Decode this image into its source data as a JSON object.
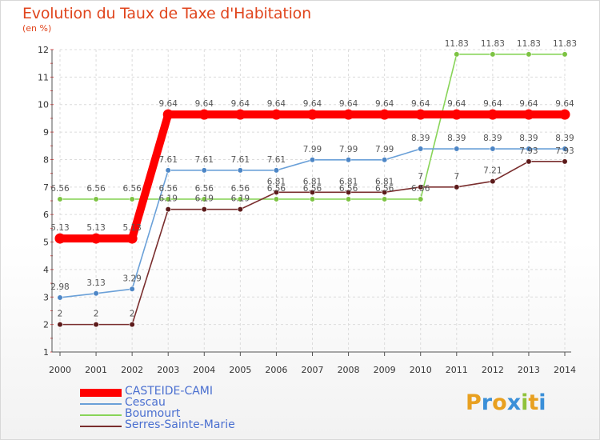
{
  "header": {
    "title": "Evolution du Taux de Taxe d'Habitation",
    "subtitle": "(en %)"
  },
  "chart_data": {
    "type": "line",
    "title": "Evolution du Taux de Taxe d'Habitation",
    "ylabel": "(en %)",
    "x": [
      "2000",
      "2001",
      "2002",
      "2003",
      "2004",
      "2005",
      "2006",
      "2007",
      "2008",
      "2009",
      "2010",
      "2011",
      "2012",
      "2013",
      "2014"
    ],
    "ylim": [
      1,
      12
    ],
    "yticks": [
      1,
      2,
      3,
      4,
      5,
      6,
      7,
      8,
      9,
      10,
      11,
      12
    ],
    "grid": true,
    "legend_position": "bottom-left",
    "series": [
      {
        "name": "Boumourt",
        "color": "#88d458",
        "marker": "#7dc343",
        "values": [
          6.56,
          6.56,
          6.56,
          6.56,
          6.56,
          6.56,
          6.56,
          6.56,
          6.56,
          6.56,
          6.56,
          11.83,
          11.83,
          11.83,
          11.83
        ],
        "labels": [
          "6.56",
          "6.56",
          "6.56",
          "6.56",
          "6.56",
          "6.56",
          "6.56",
          "6.56",
          "6.56",
          "6.56",
          "6.56",
          "11.83",
          "11.83",
          "11.83",
          "11.83"
        ]
      },
      {
        "name": "Serres-Sainte-Marie",
        "color": "#7a2e2e",
        "marker": "#5c1a1a",
        "values": [
          2,
          2,
          2,
          6.19,
          6.19,
          6.19,
          6.81,
          6.81,
          6.81,
          6.81,
          7,
          7,
          7.21,
          7.93,
          7.93
        ],
        "labels": [
          "2",
          "2",
          "2",
          "6.19",
          "6.19",
          "6.19",
          "6.81",
          "6.81",
          "6.81",
          "6.81",
          "7",
          "7",
          "7.21",
          "7.93",
          "7.93"
        ]
      },
      {
        "name": "Cescau",
        "color": "#6aa0d8",
        "marker": "#4d86c6",
        "values": [
          2.98,
          3.13,
          3.29,
          7.61,
          7.61,
          7.61,
          7.61,
          7.99,
          7.99,
          7.99,
          8.39,
          8.39,
          8.39,
          8.39,
          8.39
        ],
        "labels": [
          "2.98",
          "3.13",
          "3.29",
          "7.61",
          "7.61",
          "7.61",
          "7.61",
          "7.99",
          "7.99",
          "7.99",
          "8.39",
          "8.39",
          "8.39",
          "8.39",
          "8.39"
        ]
      },
      {
        "name": "CASTEIDE-CAMI",
        "color": "#ff0000",
        "marker": "#ff0000",
        "values": [
          5.13,
          5.13,
          5.13,
          9.64,
          9.64,
          9.64,
          9.64,
          9.64,
          9.64,
          9.64,
          9.64,
          9.64,
          9.64,
          9.64,
          9.64
        ],
        "labels": [
          "5.13",
          "5.13",
          "5.13",
          "9.64",
          "9.64",
          "9.64",
          "9.64",
          "9.64",
          "9.64",
          "9.64",
          "9.64",
          "9.64",
          "9.64",
          "9.64",
          "9.64"
        ]
      }
    ]
  },
  "legend": {
    "items": [
      {
        "label": "CASTEIDE-CAMI",
        "color": "#ff0000",
        "thickness": 10
      },
      {
        "label": "Cescau",
        "color": "#6aa0d8",
        "thickness": 2
      },
      {
        "label": "Boumourt",
        "color": "#88d458",
        "thickness": 2
      },
      {
        "label": "Serres-Sainte-Marie",
        "color": "#7a2e2e",
        "thickness": 2
      }
    ]
  },
  "logo": {
    "text": "Proxiti",
    "letters": [
      {
        "char": "P",
        "color": "#e8a020"
      },
      {
        "char": "r",
        "color": "#3a8fd8"
      },
      {
        "char": "o",
        "color": "#e8a020"
      },
      {
        "char": "x",
        "color": "#3a8fd8"
      },
      {
        "char": "i",
        "color": "#8fc23a"
      },
      {
        "char": "t",
        "color": "#e8a020"
      },
      {
        "char": "i",
        "color": "#3a8fd8"
      }
    ]
  }
}
